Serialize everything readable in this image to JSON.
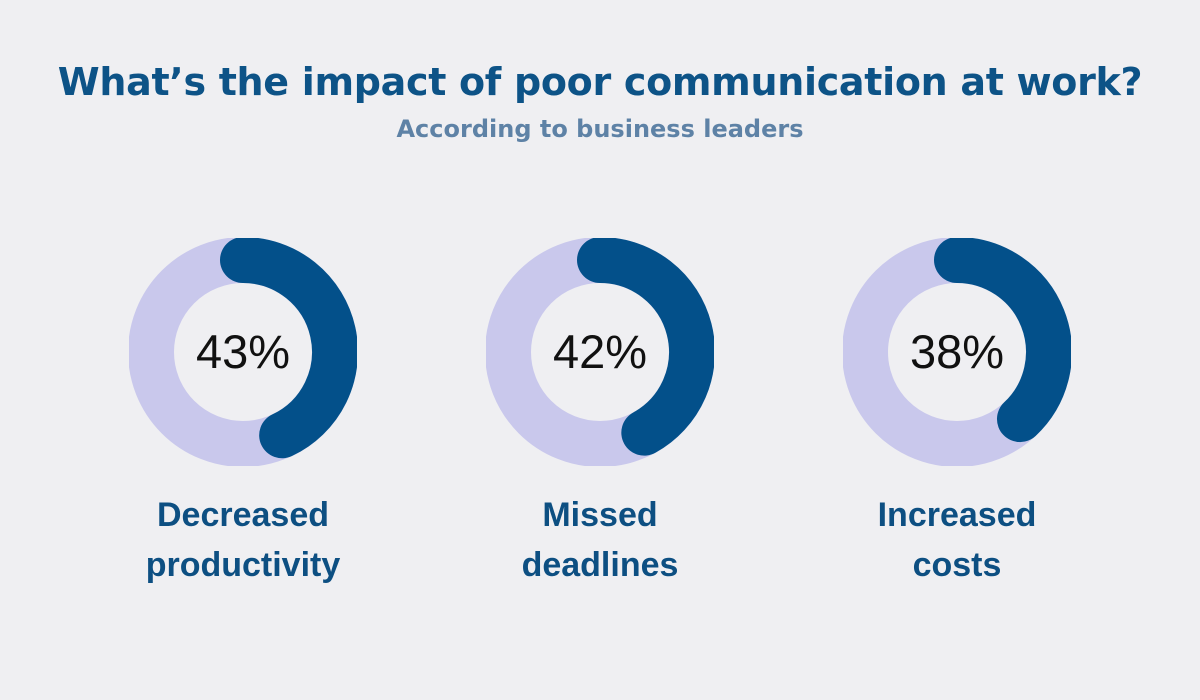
{
  "title": "What’s the impact of poor communication at work?",
  "subtitle": "According to business leaders",
  "colors": {
    "track": "#c9c8ec",
    "arc": "#03508a",
    "inner": "#efeff2",
    "label": "#0d4f82",
    "title": "#0d5387",
    "subtitle": "#5e82a6"
  },
  "chart_data": {
    "type": "pie",
    "title": "What’s the impact of poor communication at work?",
    "subtitle": "According to business leaders",
    "unit": "%",
    "items": [
      {
        "label_lines": [
          "Decreased",
          "productivity"
        ],
        "value": 43,
        "value_label": "43%"
      },
      {
        "label_lines": [
          "Missed",
          "deadlines"
        ],
        "value": 42,
        "value_label": "42%"
      },
      {
        "label_lines": [
          "Increased",
          "costs"
        ],
        "value": 38,
        "value_label": "38%"
      }
    ]
  }
}
